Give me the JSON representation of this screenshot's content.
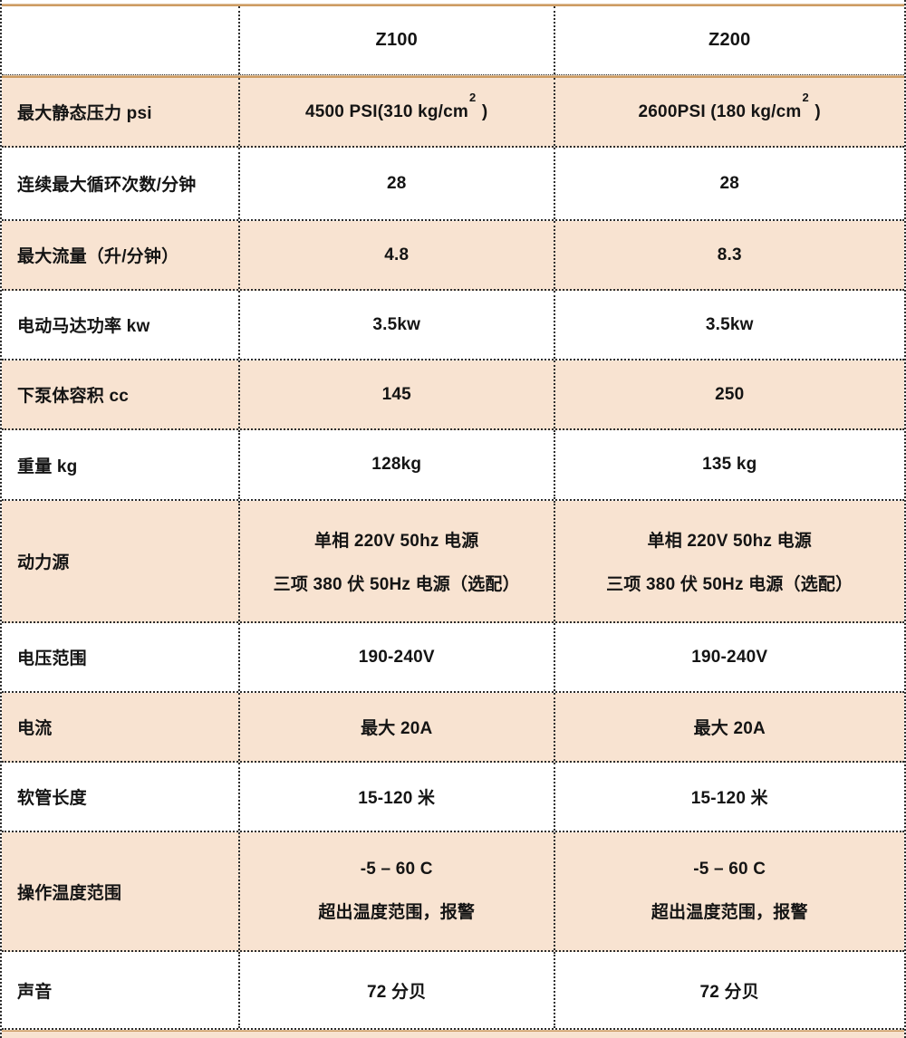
{
  "colors": {
    "alt_row_bg": "#f8e3d1",
    "divider_line": "#cd9c63",
    "dotted_border": "#2d2d2d",
    "text": "#141414",
    "page_bg": "#ffffff"
  },
  "table": {
    "header": {
      "z100": "Z100",
      "z200": "Z200"
    },
    "rows": [
      {
        "label": "最大静态压力 psi",
        "z100": {
          "text": "4500 PSI(310 kg/cm",
          "sup": "2",
          "close": " )"
        },
        "z200": {
          "text": "2600PSI (180 kg/cm",
          "sup": "2",
          "close": " )"
        }
      },
      {
        "label": "连续最大循环次数/分钟",
        "z100": "28",
        "z200": "28"
      },
      {
        "label": "最大流量（升/分钟）",
        "z100": "4.8",
        "z200": "8.3"
      },
      {
        "label": "电动马达功率 kw",
        "z100": "3.5kw",
        "z200": "3.5kw"
      },
      {
        "label": "下泵体容积 cc",
        "z100": "145",
        "z200": "250"
      },
      {
        "label": "重量 kg",
        "z100": "128kg",
        "z200": "135 kg"
      },
      {
        "label": "动力源",
        "z100_line1": "单相 220V 50hz 电源",
        "z100_line2": "三项 380 伏 50Hz 电源（选配）",
        "z200_line1": "单相 220V 50hz 电源",
        "z200_line2": "三项 380 伏 50Hz 电源（选配）"
      },
      {
        "label": "电压范围",
        "z100": "190-240V",
        "z200": "190-240V"
      },
      {
        "label": "电流",
        "z100": "最大 20A",
        "z200": "最大 20A"
      },
      {
        "label": "软管长度",
        "z100": "15-120 米",
        "z200": "15-120 米"
      },
      {
        "label": "操作温度范围",
        "z100_line1": "-5 – 60 C",
        "z100_line2": "超出温度范围，报警",
        "z200_line1": "-5 – 60 C",
        "z200_line2": "超出温度范围，报警"
      },
      {
        "label": "声音",
        "z100": "72 分贝",
        "z200": "72 分贝"
      }
    ]
  }
}
